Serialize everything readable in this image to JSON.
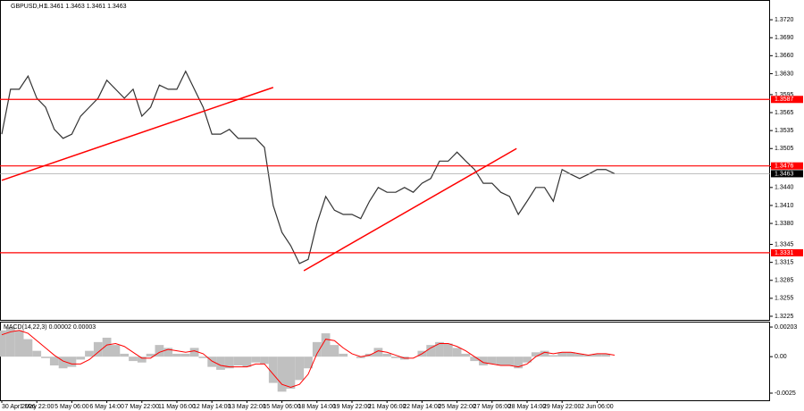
{
  "chart_data": [
    {
      "type": "line",
      "title": "GBPUSD,H1",
      "subtitle": "1.3461 1.3463 1.3461 1.3463",
      "categories": [
        "30 Apr 2026",
        null,
        null,
        null,
        "1 May 22:00",
        null,
        null,
        null,
        "5 May 06:00",
        null,
        null,
        null,
        "6 May 14:00",
        null,
        null,
        null,
        "7 May 22:00",
        null,
        null,
        null,
        "11 May 06:00",
        null,
        null,
        null,
        "12 May 14:00",
        null,
        null,
        null,
        "13 May 22:00",
        null,
        null,
        null,
        "15 May 06:00",
        null,
        null,
        null,
        "18 May 14:00",
        null,
        null,
        null,
        "19 May 22:00",
        null,
        null,
        null,
        "21 May 06:00",
        null,
        null,
        null,
        "22 May 14:00",
        null,
        null,
        null,
        "25 May 22:00",
        null,
        null,
        null,
        "27 May 06:00",
        null,
        null,
        null,
        "28 May 14:00",
        null,
        null,
        null,
        "29 May 22:00",
        null,
        null,
        null,
        "2 Jun 06:00",
        null,
        null
      ],
      "color": "#333333",
      "values": [
        1.3529,
        1.3604,
        1.3604,
        1.3626,
        1.3589,
        1.3574,
        1.3537,
        1.3522,
        1.3529,
        1.3559,
        1.3574,
        1.3589,
        1.3619,
        1.3604,
        1.3589,
        1.3604,
        1.3559,
        1.3574,
        1.3611,
        1.3604,
        1.3604,
        1.3634,
        1.3604,
        1.3574,
        1.3529,
        1.3529,
        1.3537,
        1.3522,
        1.3522,
        1.3522,
        1.3507,
        1.341,
        1.3365,
        1.3343,
        1.3313,
        1.332,
        1.338,
        1.3425,
        1.3402,
        1.3395,
        1.3395,
        1.3388,
        1.3417,
        1.344,
        1.3432,
        1.3432,
        1.344,
        1.3432,
        1.3447,
        1.3455,
        1.3484,
        1.3484,
        1.3499,
        1.3484,
        1.347,
        1.3447,
        1.3447,
        1.3432,
        1.3425,
        1.3395,
        1.3417,
        1.344,
        1.344,
        1.3417,
        1.347,
        1.3462,
        1.3455,
        1.3462,
        1.347,
        1.347,
        1.3463
      ],
      "ylim": [
        1.3219,
        1.3747
      ],
      "yticks": [
        {
          "value": 1.372,
          "label": "1.3720"
        },
        {
          "value": 1.369,
          "label": "1.3690"
        },
        {
          "value": 1.366,
          "label": "1.3660"
        },
        {
          "value": 1.363,
          "label": "1.3630"
        },
        {
          "value": 1.3595,
          "label": "1.3595"
        },
        {
          "value": 1.3565,
          "label": "1.3565"
        },
        {
          "value": 1.3535,
          "label": "1.3535"
        },
        {
          "value": 1.3505,
          "label": "1.3505"
        },
        {
          "value": 1.3475,
          "label": "1.3475"
        },
        {
          "value": 1.344,
          "label": "1.3440"
        },
        {
          "value": 1.341,
          "label": "1.3410"
        },
        {
          "value": 1.338,
          "label": "1.3380"
        },
        {
          "value": 1.3345,
          "label": "1.3345"
        },
        {
          "value": 1.3315,
          "label": "1.3315"
        },
        {
          "value": 1.3285,
          "label": "1.3285"
        },
        {
          "value": 1.3255,
          "label": "1.3255"
        },
        {
          "value": 1.3225,
          "label": "1.3225"
        }
      ],
      "levels": [
        1.3587,
        1.3476,
        1.3331
      ],
      "level_color": "#ff0000",
      "current": 1.3463,
      "trendlines": [
        {
          "x": [
            0,
            31
          ],
          "y": [
            1.3452,
            1.3607
          ]
        },
        {
          "x": [
            34.5,
            58.8
          ],
          "y": [
            1.3301,
            1.3505
          ]
        }
      ]
    },
    {
      "type": "bar",
      "title": "MACD(14,22,3) 0.00002 0.00003",
      "color": "#c0c0c0",
      "signal_color": "#ff0000",
      "values": [
        0.0018,
        0.002,
        0.0018,
        0.0012,
        0.0004,
        -0.0001,
        -0.0006,
        -0.0008,
        -0.0007,
        -0.0002,
        0.0004,
        0.001,
        0.0013,
        0.0008,
        0.0002,
        -0.0003,
        -0.0004,
        0.0002,
        0.0008,
        0.0006,
        0.0002,
        0.0002,
        0.0006,
        -0.0001,
        -0.0007,
        -0.0009,
        -0.0008,
        -0.0006,
        -0.0007,
        -0.0004,
        -0.0005,
        -0.0018,
        -0.0024,
        -0.0022,
        -0.0016,
        -0.0008,
        0.001,
        0.0016,
        0.0008,
        0.0002,
        0,
        -0.0001,
        0.0002,
        0.0006,
        0.0002,
        -0.0001,
        -0.0002,
        0,
        0.0004,
        0.0008,
        0.001,
        0.0009,
        0.0006,
        0.0002,
        -0.0003,
        -0.0006,
        -0.0005,
        -0.0006,
        -0.0006,
        -0.0008,
        -0.0004,
        0.0003,
        0.0004,
        0.0001,
        0.0003,
        0.0003,
        0.0002,
        0.0001,
        0.0002,
        0.0002,
        0
      ],
      "signal": [
        0.0015,
        0.0017,
        0.0018,
        0.0016,
        0.0011,
        0.0006,
        0.0001,
        -0.0003,
        -0.0005,
        -0.0005,
        -0.0002,
        0.0003,
        0.0008,
        0.0009,
        0.0007,
        0.0003,
        -0.0001,
        -0.0001,
        0.0003,
        0.0005,
        0.0004,
        0.0003,
        0.0004,
        0.0002,
        -0.0003,
        -0.0006,
        -0.0007,
        -0.0007,
        -0.0007,
        -0.0005,
        -0.0005,
        -0.0012,
        -0.0019,
        -0.0021,
        -0.0019,
        -0.0012,
        0.0002,
        0.0012,
        0.0011,
        0.0006,
        0.0002,
        0,
        0.0001,
        0.0004,
        0.0003,
        0.0001,
        -0.0001,
        -0.0001,
        0.0002,
        0.0006,
        0.0009,
        0.0009,
        0.0007,
        0.0004,
        0,
        -0.0004,
        -0.0005,
        -0.0006,
        -0.0006,
        -0.0007,
        -0.0005,
        0,
        0.0003,
        0.0002,
        0.0003,
        0.0003,
        0.0002,
        0.0001,
        0.0002,
        0.0002,
        0.0001
      ],
      "ylim": [
        -0.00299,
        0.0024
      ],
      "yticks": [
        {
          "value": 0.00203,
          "label": "0.00203"
        },
        {
          "value": 0,
          "label": "0.00"
        },
        {
          "value": -0.0025,
          "label": "-0.0025"
        }
      ]
    }
  ]
}
